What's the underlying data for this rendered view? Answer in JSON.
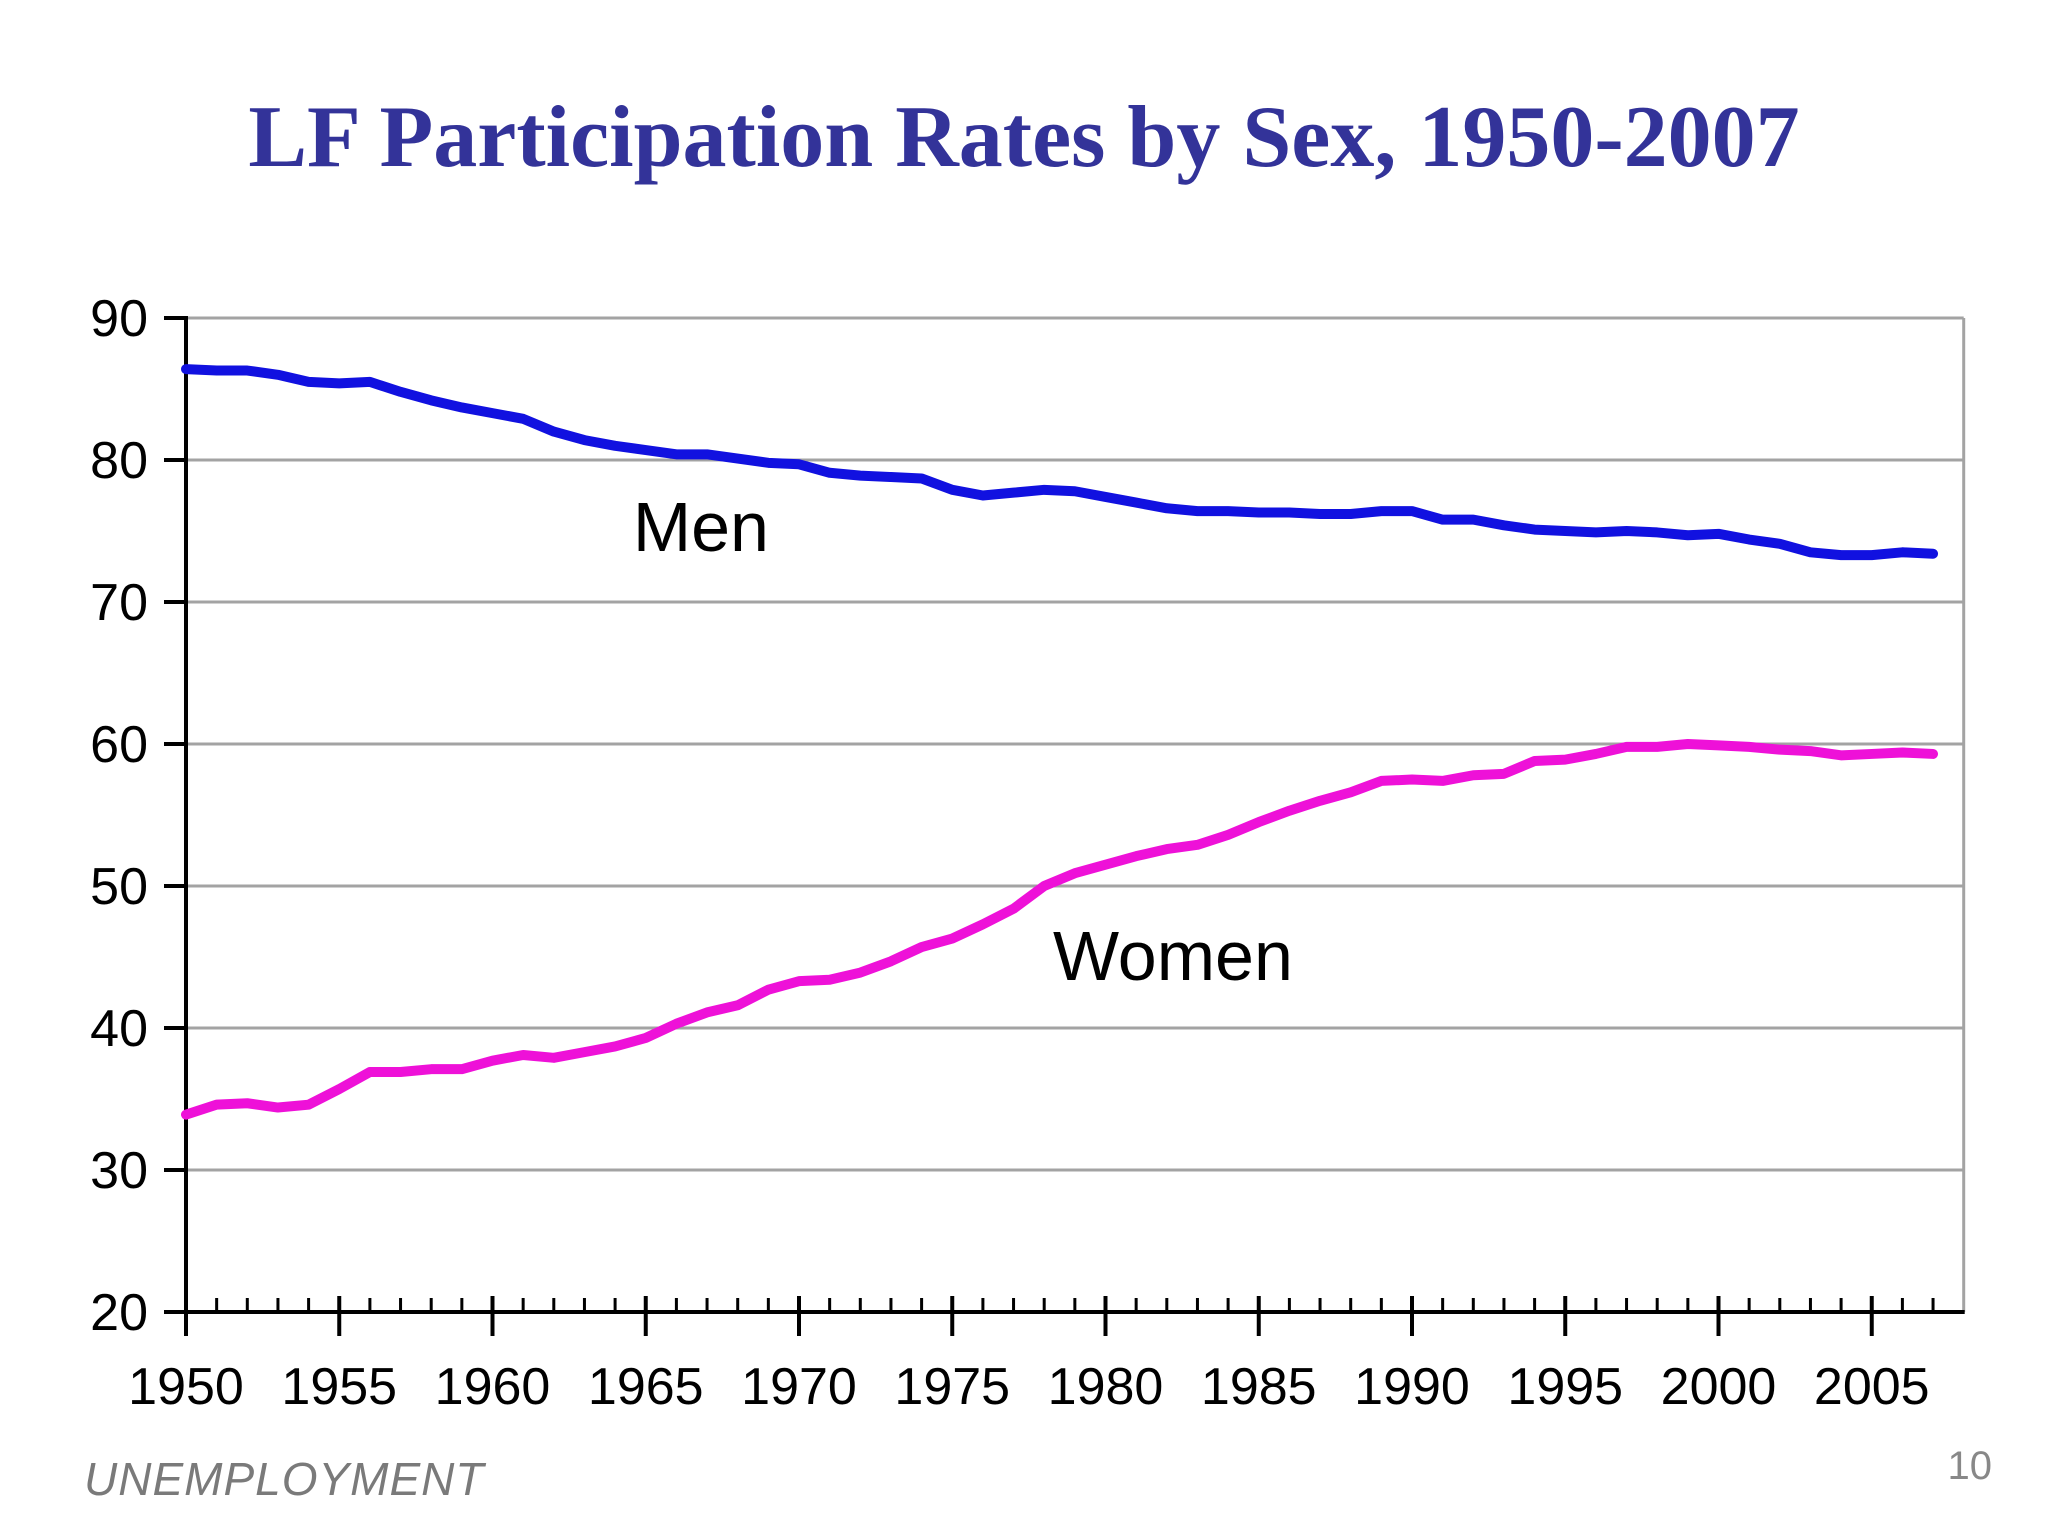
{
  "slide": {
    "title": "LF Participation Rates by Sex, 1950-2007",
    "footer_left": "UNEMPLOYMENT",
    "page_number": "10"
  },
  "colors": {
    "title": "#333399",
    "men_line": "#1111e0",
    "women_line": "#ee11d8",
    "grid": "#a3a3a3",
    "axis": "#000000",
    "tick_label": "#000000",
    "series_label": "#000000",
    "footer": "#7a7a7a",
    "page_number": "#888888"
  },
  "chart_data": {
    "type": "line",
    "title": "LF Participation Rates by Sex, 1950-2007",
    "xlabel": "",
    "ylabel": "",
    "xlim": [
      1950,
      2008
    ],
    "ylim": [
      20,
      90
    ],
    "grid": "horizontal-gray",
    "legend": "inline-text-labels",
    "y_ticks": [
      20,
      30,
      40,
      50,
      60,
      70,
      80,
      90
    ],
    "x_tick_labels": [
      1950,
      1955,
      1960,
      1965,
      1970,
      1975,
      1980,
      1985,
      1990,
      1995,
      2000,
      2005
    ],
    "x_minor_tick_every_year": true,
    "x": [
      1950,
      1951,
      1952,
      1953,
      1954,
      1955,
      1956,
      1957,
      1958,
      1959,
      1960,
      1961,
      1962,
      1963,
      1964,
      1965,
      1966,
      1967,
      1968,
      1969,
      1970,
      1971,
      1972,
      1973,
      1974,
      1975,
      1976,
      1977,
      1978,
      1979,
      1980,
      1981,
      1982,
      1983,
      1984,
      1985,
      1986,
      1987,
      1988,
      1989,
      1990,
      1991,
      1992,
      1993,
      1994,
      1995,
      1996,
      1997,
      1998,
      1999,
      2000,
      2001,
      2002,
      2003,
      2004,
      2005,
      2006,
      2007
    ],
    "series": [
      {
        "name": "Men",
        "color_key": "men_line",
        "values": [
          86.4,
          86.3,
          86.3,
          86.0,
          85.5,
          85.4,
          85.5,
          84.8,
          84.2,
          83.7,
          83.3,
          82.9,
          82.0,
          81.4,
          81.0,
          80.7,
          80.4,
          80.4,
          80.1,
          79.8,
          79.7,
          79.1,
          78.9,
          78.8,
          78.7,
          77.9,
          77.5,
          77.7,
          77.9,
          77.8,
          77.4,
          77.0,
          76.6,
          76.4,
          76.4,
          76.3,
          76.3,
          76.2,
          76.2,
          76.4,
          76.4,
          75.8,
          75.8,
          75.4,
          75.1,
          75.0,
          74.9,
          75.0,
          74.9,
          74.7,
          74.8,
          74.4,
          74.1,
          73.5,
          73.3,
          73.3,
          73.5,
          73.4
        ]
      },
      {
        "name": "Women",
        "color_key": "women_line",
        "values": [
          33.9,
          34.6,
          34.7,
          34.4,
          34.6,
          35.7,
          36.9,
          36.9,
          37.1,
          37.1,
          37.7,
          38.1,
          37.9,
          38.3,
          38.7,
          39.3,
          40.3,
          41.1,
          41.6,
          42.7,
          43.3,
          43.4,
          43.9,
          44.7,
          45.7,
          46.3,
          47.3,
          48.4,
          50.0,
          50.9,
          51.5,
          52.1,
          52.6,
          52.9,
          53.6,
          54.5,
          55.3,
          56.0,
          56.6,
          57.4,
          57.5,
          57.4,
          57.8,
          57.9,
          58.8,
          58.9,
          59.3,
          59.8,
          59.8,
          60.0,
          59.9,
          59.8,
          59.6,
          59.5,
          59.2,
          59.3,
          59.4,
          59.3
        ]
      }
    ],
    "annotations": [
      {
        "text": "Men",
        "x": 1966.8,
        "y": 75.3
      },
      {
        "text": "Women",
        "x": 1982.2,
        "y": 45.1
      }
    ]
  }
}
